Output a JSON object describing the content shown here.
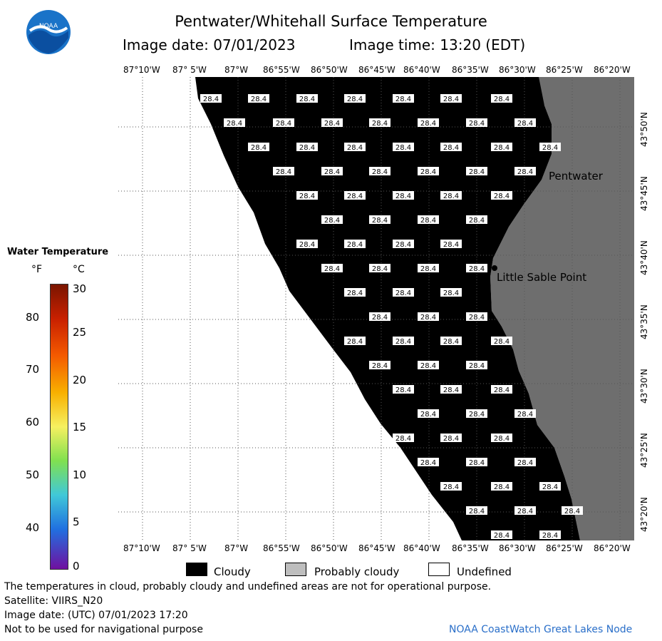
{
  "header": {
    "title": "Pentwater/Whitehall Surface Temperature",
    "subtitle_date": "Image date: 07/01/2023",
    "subtitle_time": "Image time: 13:20 (EDT)"
  },
  "logo": {
    "text": "NOAA"
  },
  "map": {
    "lon_ticks": [
      "87°10'W",
      "87° 5'W",
      "87°W",
      "86°55'W",
      "86°50'W",
      "86°45'W",
      "86°40'W",
      "86°35'W",
      "86°30'W",
      "86°25'W",
      "86°20'W"
    ],
    "lat_ticks": [
      "43°50'N",
      "43°45'N",
      "43°40'N",
      "43°35'N",
      "43°30'N",
      "43°25'N",
      "43°20'N"
    ],
    "temp_value": "28.4",
    "place_labels": [
      "Pentwater",
      "Little Sable Point"
    ],
    "colors": {
      "cloudy": "#000000",
      "land": "#6e6e6e",
      "probably_cloudy": "#bebebe",
      "undefined": "#ffffff"
    }
  },
  "scale": {
    "title": "Water Temperature",
    "unit_f": "°F",
    "unit_c": "°C",
    "f_ticks": [
      "80",
      "70",
      "60",
      "50",
      "40"
    ],
    "c_ticks": [
      "30",
      "25",
      "20",
      "15",
      "10",
      "5",
      "0"
    ]
  },
  "legend": {
    "items": [
      {
        "label": "Cloudy",
        "color": "#000000"
      },
      {
        "label": "Probably cloudy",
        "color": "#bebebe"
      },
      {
        "label": "Undefined",
        "color": "#ffffff"
      }
    ]
  },
  "footer": {
    "line1": "The temperatures in cloud, probably cloudy and undefined areas are not for operational purpose.",
    "line2": "Satellite: VIIRS_N20",
    "line3": "Image date: (UTC) 07/01/2023  17:20",
    "line4": "Not to be used for navigational purpose",
    "credit": "NOAA CoastWatch Great Lakes Node"
  }
}
